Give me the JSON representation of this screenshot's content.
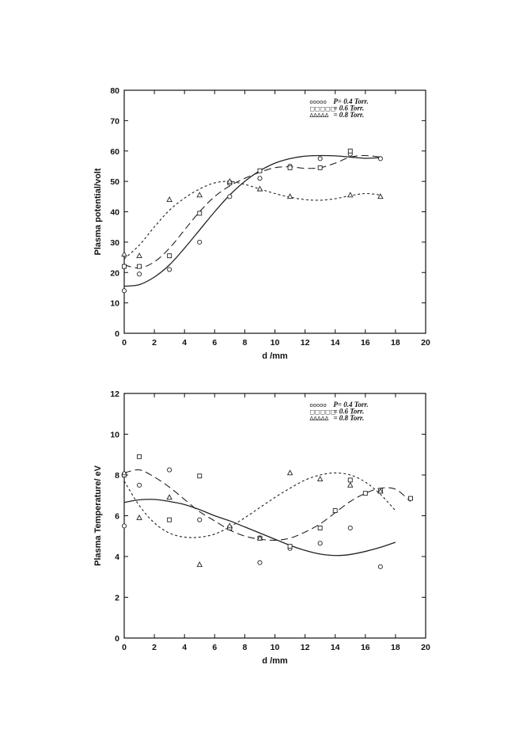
{
  "chart_data": [
    {
      "type": "scatter",
      "ylabel": "Plasma  potential/volt",
      "xlabel": "d  /mm",
      "xlim": [
        0,
        20
      ],
      "ylim": [
        0,
        80
      ],
      "xticks": [
        "0",
        "2",
        "4",
        "6",
        "8",
        "10",
        "12",
        "14",
        "16",
        "18",
        "20"
      ],
      "yticks": [
        "0",
        "10",
        "20",
        "30",
        "40",
        "50",
        "60",
        "70",
        "80"
      ],
      "legend_position": "top-right",
      "legend": [
        {
          "symbols": "ooooo",
          "label": "P=  0.4  Torr."
        },
        {
          "symbols": "□□□□□",
          "label": "=  0.6  Torr."
        },
        {
          "symbols": "ΔΔΔΔΔ",
          "label": "=  0.8  Torr."
        }
      ],
      "series": [
        {
          "marker": "circle",
          "line": "solid",
          "x": [
            0,
            1,
            3,
            5,
            7,
            9,
            11,
            13,
            15,
            17
          ],
          "y": [
            14,
            19.5,
            21,
            30,
            45,
            51,
            55,
            57.5,
            59,
            57.5
          ],
          "fit_x": [
            0,
            1,
            2,
            3,
            4,
            5,
            6,
            7,
            8,
            9,
            10,
            11,
            12,
            13,
            14,
            15,
            16,
            17
          ],
          "fit_y": [
            15.5,
            16,
            18.5,
            22.5,
            28,
            34,
            40,
            45.5,
            50,
            53.5,
            56,
            57.5,
            58.3,
            58.5,
            58.4,
            58,
            57.6,
            57.8
          ]
        },
        {
          "marker": "square",
          "line": "dashed",
          "x": [
            0,
            1,
            3,
            5,
            7,
            9,
            11,
            13,
            15
          ],
          "y": [
            22,
            22,
            25.5,
            39.5,
            49.5,
            53.5,
            54.5,
            54.5,
            60
          ],
          "fit_x": [
            0,
            1,
            2,
            3,
            4,
            5,
            6,
            7,
            8,
            9,
            10,
            11,
            12,
            13,
            14,
            15,
            16,
            17
          ],
          "fit_y": [
            22.5,
            21.5,
            23.5,
            28,
            34,
            40,
            45,
            48.5,
            51,
            53,
            54.5,
            54.8,
            54.3,
            54.5,
            56,
            58,
            58.5,
            58
          ]
        },
        {
          "marker": "triangle",
          "line": "dotted",
          "x": [
            0,
            1,
            3,
            5,
            7,
            9,
            11,
            15,
            17
          ],
          "y": [
            26,
            25.5,
            44,
            45.5,
            50,
            47.5,
            45,
            45.5,
            45
          ],
          "fit_x": [
            0,
            1,
            2,
            3,
            4,
            5,
            6,
            7,
            8,
            9,
            10,
            11,
            12,
            13,
            14,
            15,
            16,
            17
          ],
          "fit_y": [
            24.5,
            29,
            35,
            40.5,
            44.5,
            47.5,
            49.5,
            50,
            49,
            47.5,
            46,
            44.8,
            44,
            43.8,
            44.3,
            45.3,
            46,
            45.5
          ]
        }
      ]
    },
    {
      "type": "scatter",
      "ylabel": "Plasma  Temperature/  eV",
      "xlabel": "d  /mm",
      "xlim": [
        0,
        20
      ],
      "ylim": [
        0,
        12
      ],
      "xticks": [
        "0",
        "2",
        "4",
        "6",
        "8",
        "10",
        "12",
        "14",
        "16",
        "18",
        "20"
      ],
      "yticks": [
        "0",
        "2",
        "4",
        "6",
        "8",
        "10",
        "12"
      ],
      "legend_position": "top-right",
      "legend": [
        {
          "symbols": "ooooo",
          "label": "P=  0.4  Torr."
        },
        {
          "symbols": "□□□□□",
          "label": "=  0.6  Torr."
        },
        {
          "symbols": "ΔΔΔΔΔ",
          "label": "=  0.8  Torr."
        }
      ],
      "series": [
        {
          "marker": "circle",
          "line": "solid",
          "x": [
            0,
            1,
            3,
            5,
            7,
            9,
            11,
            13,
            15,
            17
          ],
          "y": [
            5.5,
            7.5,
            8.25,
            5.8,
            5.4,
            3.7,
            4.4,
            4.65,
            5.4,
            3.5
          ],
          "fit_x": [
            0,
            1,
            2,
            3,
            4,
            5,
            6,
            7,
            8,
            9,
            10,
            11,
            12,
            13,
            14,
            15,
            16,
            17,
            18
          ],
          "fit_y": [
            6.65,
            6.78,
            6.8,
            6.7,
            6.55,
            6.3,
            6.0,
            5.75,
            5.45,
            5.15,
            4.85,
            4.55,
            4.3,
            4.12,
            4.05,
            4.1,
            4.25,
            4.45,
            4.7
          ]
        },
        {
          "marker": "square",
          "line": "dashed",
          "x": [
            0,
            1,
            3,
            5,
            7,
            9,
            11,
            13,
            14,
            15,
            16,
            17,
            19
          ],
          "y": [
            8.0,
            8.9,
            5.8,
            7.95,
            5.4,
            4.9,
            4.5,
            5.4,
            6.25,
            7.75,
            7.1,
            7.25,
            6.85
          ],
          "fit_x": [
            0,
            1,
            2,
            3,
            4,
            5,
            6,
            7,
            8,
            9,
            10,
            11,
            12,
            13,
            14,
            15,
            16,
            17,
            18,
            19
          ],
          "fit_y": [
            8.1,
            8.25,
            7.9,
            7.4,
            6.8,
            6.2,
            5.75,
            5.3,
            5.0,
            4.85,
            4.8,
            4.9,
            5.2,
            5.6,
            6.15,
            6.7,
            7.1,
            7.35,
            7.3,
            6.7
          ]
        },
        {
          "marker": "triangle",
          "line": "dotted",
          "x": [
            0,
            1,
            3,
            5,
            7,
            9,
            11,
            13,
            15,
            17
          ],
          "y": [
            8.1,
            5.9,
            6.9,
            3.6,
            5.5,
            4.9,
            8.1,
            7.8,
            7.5,
            7.2
          ],
          "fit_x": [
            0,
            1,
            2,
            3,
            4,
            5,
            6,
            7,
            8,
            9,
            10,
            11,
            12,
            13,
            14,
            15,
            16,
            17,
            18
          ],
          "fit_y": [
            7.7,
            6.5,
            5.65,
            5.15,
            4.95,
            4.95,
            5.1,
            5.45,
            5.9,
            6.4,
            6.9,
            7.35,
            7.75,
            8.0,
            8.1,
            8.0,
            7.65,
            7.05,
            6.25
          ]
        }
      ]
    }
  ]
}
